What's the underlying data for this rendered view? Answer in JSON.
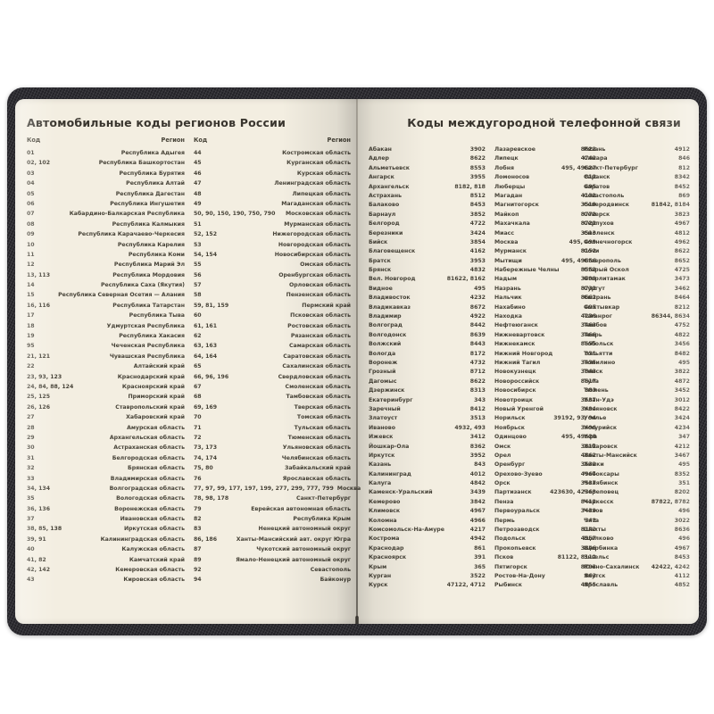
{
  "colors": {
    "cover": "#232227",
    "page": "#f3eee1",
    "text": "#474338",
    "title": "#39352e"
  },
  "left_page": {
    "title": "Автомобильные коды регионов России",
    "col_headers": {
      "code": "Код",
      "region": "Регион"
    },
    "column1": [
      {
        "code": "01",
        "region": "Республика Адыгея"
      },
      {
        "code": "02, 102",
        "region": "Республика Башкортостан"
      },
      {
        "code": "03",
        "region": "Республика Бурятия"
      },
      {
        "code": "04",
        "region": "Республика Алтай"
      },
      {
        "code": "05",
        "region": "Республика Дагестан"
      },
      {
        "code": "06",
        "region": "Республика Ингушетия"
      },
      {
        "code": "07",
        "region": "Кабардино-Балкарская Республика"
      },
      {
        "code": "08",
        "region": "Республика Калмыкия"
      },
      {
        "code": "09",
        "region": "Республика Карачаево-Черкесия"
      },
      {
        "code": "10",
        "region": "Республика Карелия"
      },
      {
        "code": "11",
        "region": "Республика Коми"
      },
      {
        "code": "12",
        "region": "Республика Марий Эл"
      },
      {
        "code": "13, 113",
        "region": "Республика Мордовия"
      },
      {
        "code": "14",
        "region": "Республика Саха (Якутия)"
      },
      {
        "code": "15",
        "region": "Республика Северная Осетия — Алания"
      },
      {
        "code": "16, 116",
        "region": "Республика Татарстан"
      },
      {
        "code": "17",
        "region": "Республика Тыва"
      },
      {
        "code": "18",
        "region": "Удмуртская Республика"
      },
      {
        "code": "19",
        "region": "Республика Хакасия"
      },
      {
        "code": "95",
        "region": "Чеченская Республика"
      },
      {
        "code": "21, 121",
        "region": "Чувашская Республика"
      },
      {
        "code": "22",
        "region": "Алтайский край"
      },
      {
        "code": "23, 93, 123",
        "region": "Краснодарский край"
      },
      {
        "code": "24, 84, 88, 124",
        "region": "Красноярский край"
      },
      {
        "code": "25, 125",
        "region": "Приморский край"
      },
      {
        "code": "26, 126",
        "region": "Ставропольский край"
      },
      {
        "code": "27",
        "region": "Хабаровский край"
      },
      {
        "code": "28",
        "region": "Амурская область"
      },
      {
        "code": "29",
        "region": "Архангельская область"
      },
      {
        "code": "30",
        "region": "Астраханская область"
      },
      {
        "code": "31",
        "region": "Белгородская область"
      },
      {
        "code": "32",
        "region": "Брянская область"
      },
      {
        "code": "33",
        "region": "Владимирская область"
      },
      {
        "code": "34, 134",
        "region": "Волгоградская область"
      },
      {
        "code": "35",
        "region": "Вологодская область"
      },
      {
        "code": "36, 136",
        "region": "Воронежская область"
      },
      {
        "code": "37",
        "region": "Ивановская область"
      },
      {
        "code": "38, 85, 138",
        "region": "Иркутская область"
      },
      {
        "code": "39, 91",
        "region": "Калининградская область"
      },
      {
        "code": "40",
        "region": "Калужская область"
      },
      {
        "code": "41, 82",
        "region": "Камчатский край"
      },
      {
        "code": "42, 142",
        "region": "Кемеровская область"
      },
      {
        "code": "43",
        "region": "Кировская область"
      }
    ],
    "column2": [
      {
        "code": "44",
        "region": "Костромская область"
      },
      {
        "code": "45",
        "region": "Курганская область"
      },
      {
        "code": "46",
        "region": "Курская область"
      },
      {
        "code": "47",
        "region": "Ленинградская область"
      },
      {
        "code": "48",
        "region": "Липецкая область"
      },
      {
        "code": "49",
        "region": "Магаданская область"
      },
      {
        "code": "50, 90, 150, 190, 750, 790",
        "region": "Московская область"
      },
      {
        "code": "51",
        "region": "Мурманская область"
      },
      {
        "code": "52, 152",
        "region": "Нижегородская область"
      },
      {
        "code": "53",
        "region": "Новгородская область"
      },
      {
        "code": "54, 154",
        "region": "Новосибирская область"
      },
      {
        "code": "55",
        "region": "Омская область"
      },
      {
        "code": "56",
        "region": "Оренбургская область"
      },
      {
        "code": "57",
        "region": "Орловская область"
      },
      {
        "code": "58",
        "region": "Пензенская область"
      },
      {
        "code": "59, 81, 159",
        "region": "Пермский край"
      },
      {
        "code": "60",
        "region": "Псковская область"
      },
      {
        "code": "61, 161",
        "region": "Ростовская область"
      },
      {
        "code": "62",
        "region": "Рязанская область"
      },
      {
        "code": "63, 163",
        "region": "Самарская область"
      },
      {
        "code": "64, 164",
        "region": "Саратовская область"
      },
      {
        "code": "65",
        "region": "Сахалинская область"
      },
      {
        "code": "66, 96, 196",
        "region": "Свердловская область"
      },
      {
        "code": "67",
        "region": "Смоленская область"
      },
      {
        "code": "68",
        "region": "Тамбовская область"
      },
      {
        "code": "69, 169",
        "region": "Тверская область"
      },
      {
        "code": "70",
        "region": "Томская область"
      },
      {
        "code": "71",
        "region": "Тульская область"
      },
      {
        "code": "72",
        "region": "Тюменская область"
      },
      {
        "code": "73, 173",
        "region": "Ульяновская область"
      },
      {
        "code": "74, 174",
        "region": "Челябинская область"
      },
      {
        "code": "75, 80",
        "region": "Забайкальский край"
      },
      {
        "code": "76",
        "region": "Ярославская область"
      },
      {
        "code": "77, 97, 99, 177, 197, 199, 277, 299, 777, 799",
        "region": "Москва"
      },
      {
        "code": "78, 98, 178",
        "region": "Санкт-Петербург"
      },
      {
        "code": "79",
        "region": "Еврейская автономная область"
      },
      {
        "code": "82",
        "region": "Республика Крым"
      },
      {
        "code": "83",
        "region": "Ненецкий автономный округ"
      },
      {
        "code": "86, 186",
        "region": "Ханты-Мансийский авт. округ Югра"
      },
      {
        "code": "87",
        "region": "Чукотский автономный округ"
      },
      {
        "code": "89",
        "region": "Ямало-Ненецкий автономный округ"
      },
      {
        "code": "92",
        "region": "Севастополь"
      },
      {
        "code": "94",
        "region": "Байконур"
      }
    ]
  },
  "right_page": {
    "title": "Коды междугородной телефонной связи",
    "column1": [
      {
        "city": "Абакан",
        "code": "3902"
      },
      {
        "city": "Адлер",
        "code": "8622"
      },
      {
        "city": "Альметьевск",
        "code": "8553"
      },
      {
        "city": "Ангарск",
        "code": "3955"
      },
      {
        "city": "Архангельск",
        "code": "8182, 818"
      },
      {
        "city": "Астрахань",
        "code": "8512"
      },
      {
        "city": "Балаково",
        "code": "8453"
      },
      {
        "city": "Барнаул",
        "code": "3852"
      },
      {
        "city": "Белгород",
        "code": "4722"
      },
      {
        "city": "Березники",
        "code": "3424"
      },
      {
        "city": "Бийск",
        "code": "3854"
      },
      {
        "city": "Благовещенск",
        "code": "4162"
      },
      {
        "city": "Братск",
        "code": "3953"
      },
      {
        "city": "Брянск",
        "code": "4832"
      },
      {
        "city": "Вел. Новгород",
        "code": "81622, 8162"
      },
      {
        "city": "Видное",
        "code": "495"
      },
      {
        "city": "Владивосток",
        "code": "4232"
      },
      {
        "city": "Владикавказ",
        "code": "8672"
      },
      {
        "city": "Владимир",
        "code": "4922"
      },
      {
        "city": "Волгоград",
        "code": "8442"
      },
      {
        "city": "Волгодонск",
        "code": "8639"
      },
      {
        "city": "Волжский",
        "code": "8443"
      },
      {
        "city": "Вологда",
        "code": "8172"
      },
      {
        "city": "Воронеж",
        "code": "4732"
      },
      {
        "city": "Грозный",
        "code": "8712"
      },
      {
        "city": "Дагомыс",
        "code": "8622"
      },
      {
        "city": "Дзержинск",
        "code": "8313"
      },
      {
        "city": "Екатеринбург",
        "code": "343"
      },
      {
        "city": "Заречный",
        "code": "8412"
      },
      {
        "city": "Златоуст",
        "code": "3513"
      },
      {
        "city": "Иваново",
        "code": "4932, 493"
      },
      {
        "city": "Ижевск",
        "code": "3412"
      },
      {
        "city": "Йошкар-Ола",
        "code": "8362"
      },
      {
        "city": "Иркутск",
        "code": "3952"
      },
      {
        "city": "Казань",
        "code": "843"
      },
      {
        "city": "Калининград",
        "code": "4012"
      },
      {
        "city": "Калуга",
        "code": "4842"
      },
      {
        "city": "Каменск-Уральский",
        "code": "3439"
      },
      {
        "city": "Кемерово",
        "code": "3842"
      },
      {
        "city": "Климовск",
        "code": "4967"
      },
      {
        "city": "Коломна",
        "code": "4966"
      },
      {
        "city": "Комсомольск-На-Амуре",
        "code": "4217"
      },
      {
        "city": "Кострома",
        "code": "4942"
      },
      {
        "city": "Краснодар",
        "code": "861"
      },
      {
        "city": "Красноярск",
        "code": "391"
      },
      {
        "city": "Крым",
        "code": "365"
      },
      {
        "city": "Курган",
        "code": "3522"
      },
      {
        "city": "Курск",
        "code": "47122, 4712"
      }
    ],
    "column2": [
      {
        "city": "Лазаревское",
        "code": "8622"
      },
      {
        "city": "Липецк",
        "code": "4742"
      },
      {
        "city": "Лобня",
        "code": "495, 49627"
      },
      {
        "city": "Ломоносов",
        "code": "812"
      },
      {
        "city": "Люберцы",
        "code": "495"
      },
      {
        "city": "Магадан",
        "code": "4132"
      },
      {
        "city": "Магнитогорск",
        "code": "3519"
      },
      {
        "city": "Майкоп",
        "code": "8772"
      },
      {
        "city": "Махачкала",
        "code": "8722"
      },
      {
        "city": "Миасс",
        "code": "3513"
      },
      {
        "city": "Москва",
        "code": "495, 499"
      },
      {
        "city": "Мурманск",
        "code": "8152"
      },
      {
        "city": "Мытищи",
        "code": "495, 49656"
      },
      {
        "city": "Набережные Челны",
        "code": "8552"
      },
      {
        "city": "Надым",
        "code": "3499"
      },
      {
        "city": "Назрань",
        "code": "8732"
      },
      {
        "city": "Нальчик",
        "code": "8662"
      },
      {
        "city": "Нахабино",
        "code": "495"
      },
      {
        "city": "Находка",
        "code": "4236"
      },
      {
        "city": "Нефтеюганск",
        "code": "3463"
      },
      {
        "city": "Нижневартовск",
        "code": "3466"
      },
      {
        "city": "Нижнекамск",
        "code": "8555"
      },
      {
        "city": "Нижний Новгород",
        "code": "831"
      },
      {
        "city": "Нижний Тагил",
        "code": "3435"
      },
      {
        "city": "Новокузнецк",
        "code": "3843"
      },
      {
        "city": "Новороссийск",
        "code": "8617"
      },
      {
        "city": "Новосибирск",
        "code": "383"
      },
      {
        "city": "Новотроицк",
        "code": "3537"
      },
      {
        "city": "Новый Уренгой",
        "code": "3494"
      },
      {
        "city": "Норильск",
        "code": "39192, 93, 94"
      },
      {
        "city": "Ноябрьск",
        "code": "3496"
      },
      {
        "city": "Одинцово",
        "code": "495, 49628"
      },
      {
        "city": "Омск",
        "code": "3812"
      },
      {
        "city": "Орел",
        "code": "4862"
      },
      {
        "city": "Оренбург",
        "code": "3532"
      },
      {
        "city": "Орехово-Зуево",
        "code": "4964"
      },
      {
        "city": "Орск",
        "code": "3537"
      },
      {
        "city": "Партизанск",
        "code": "423630, 42363"
      },
      {
        "city": "Пенза",
        "code": "8412"
      },
      {
        "city": "Первоуральск",
        "code": "3439"
      },
      {
        "city": "Пермь",
        "code": "342"
      },
      {
        "city": "Петрозаводск",
        "code": "8142"
      },
      {
        "city": "Подольск",
        "code": "4967"
      },
      {
        "city": "Прокопьевск",
        "code": "3846"
      },
      {
        "city": "Псков",
        "code": "81122, 8112"
      },
      {
        "city": "Пятигорск",
        "code": "8793"
      },
      {
        "city": "Ростов-На-Дону",
        "code": "863"
      },
      {
        "city": "Рыбинск",
        "code": "4855"
      }
    ],
    "column3": [
      {
        "city": "Рязань",
        "code": "4912"
      },
      {
        "city": "Самара",
        "code": "846"
      },
      {
        "city": "Санкт-Петербург",
        "code": "812"
      },
      {
        "city": "Саранск",
        "code": "8342"
      },
      {
        "city": "Саратов",
        "code": "8452"
      },
      {
        "city": "Севастополь",
        "code": "869"
      },
      {
        "city": "Северодвинск",
        "code": "81842, 8184"
      },
      {
        "city": "Северск",
        "code": "3823"
      },
      {
        "city": "Серпухов",
        "code": "4967"
      },
      {
        "city": "Смоленск",
        "code": "4812"
      },
      {
        "city": "Солнечногорск",
        "code": "4962"
      },
      {
        "city": "Сочи",
        "code": "8622"
      },
      {
        "city": "Ставрополь",
        "code": "8652"
      },
      {
        "city": "Старый Оскол",
        "code": "4725"
      },
      {
        "city": "Стерлитамак",
        "code": "3473"
      },
      {
        "city": "Сургут",
        "code": "3462"
      },
      {
        "city": "Сызрань",
        "code": "8464"
      },
      {
        "city": "Сыктывкар",
        "code": "8212"
      },
      {
        "city": "Таганрог",
        "code": "86344, 8634"
      },
      {
        "city": "Тамбов",
        "code": "4752"
      },
      {
        "city": "Тверь",
        "code": "4822"
      },
      {
        "city": "Тобольск",
        "code": "3456"
      },
      {
        "city": "Тольятти",
        "code": "8482"
      },
      {
        "city": "Томилино",
        "code": "495"
      },
      {
        "city": "Томск",
        "code": "3822"
      },
      {
        "city": "Тула",
        "code": "4872"
      },
      {
        "city": "Тюмень",
        "code": "3452"
      },
      {
        "city": "Улан-Удэ",
        "code": "3012"
      },
      {
        "city": "Ульяновск",
        "code": "8422"
      },
      {
        "city": "Усолье",
        "code": "3424"
      },
      {
        "city": "Уссурийск",
        "code": "4234"
      },
      {
        "city": "Уфа",
        "code": "347"
      },
      {
        "city": "Хабаровск",
        "code": "4212"
      },
      {
        "city": "Ханты-Мансийск",
        "code": "3467"
      },
      {
        "city": "Химки",
        "code": "495"
      },
      {
        "city": "Чебоксары",
        "code": "8352"
      },
      {
        "city": "Челябинск",
        "code": "351"
      },
      {
        "city": "Череповец",
        "code": "8202"
      },
      {
        "city": "Черкесск",
        "code": "87822, 8782"
      },
      {
        "city": "Чехов",
        "code": "496"
      },
      {
        "city": "Чита",
        "code": "3022"
      },
      {
        "city": "Шахты",
        "code": "8636"
      },
      {
        "city": "Щелково",
        "code": "496"
      },
      {
        "city": "Щербинка",
        "code": "4967"
      },
      {
        "city": "Энгельс",
        "code": "8453"
      },
      {
        "city": "Южно-Сахалинск",
        "code": "42422, 4242"
      },
      {
        "city": "Якутск",
        "code": "4112"
      },
      {
        "city": "Ярославль",
        "code": "4852"
      }
    ]
  }
}
